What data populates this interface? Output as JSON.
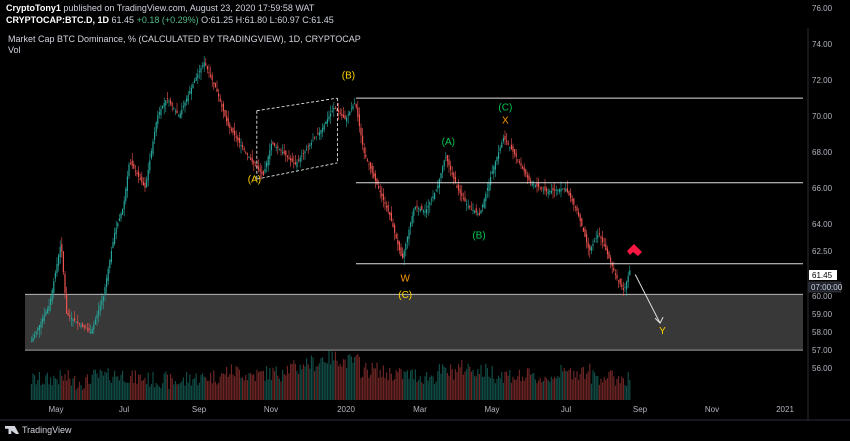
{
  "header": {
    "publisher": "CryptoTony1",
    "published_text": "published on TradingView.com, August 23, 2020 17:59:58 WAT",
    "symbol": "CRYPTOCAP:BTC.D, 1D",
    "last": "61.45",
    "change": "+0.18 (+0.29%)",
    "ohlc": "O:61.25 H:61.80 L:60.97 C:61.45"
  },
  "chart_data": {
    "type": "candlestick",
    "title": "Market Cap BTC Dominance, % (CALCULATED BY TRADINGVIEW), 1D, CRYPTOCAP",
    "indicator": "Vol",
    "x_ticks": [
      "May",
      "Jul",
      "Sep",
      "Nov",
      "2020",
      "Mar",
      "May",
      "Jul",
      "Sep",
      "Nov",
      "2021"
    ],
    "y_ticks": [
      "56.00",
      "57.00",
      "58.00",
      "59.00",
      "60.00",
      "62.50",
      "64.00",
      "66.00",
      "68.00",
      "70.00",
      "72.00",
      "74.00",
      "76.00"
    ],
    "ylim": [
      55.0,
      76.0
    ],
    "last_price": "61.45",
    "countdown": "07:00:00",
    "horizontal_levels": [
      71.0,
      66.3,
      61.8
    ],
    "support_zone": [
      57.0,
      60.1
    ],
    "trend": [
      {
        "date": "2019-04-10",
        "value": 57.5
      },
      {
        "date": "2019-04-25",
        "value": 59.5
      },
      {
        "date": "2019-05-05",
        "value": 63.0
      },
      {
        "date": "2019-05-10",
        "value": 59.0
      },
      {
        "date": "2019-05-20",
        "value": 58.5
      },
      {
        "date": "2019-06-01",
        "value": 58.0
      },
      {
        "date": "2019-06-12",
        "value": 60.0
      },
      {
        "date": "2019-06-22",
        "value": 63.5
      },
      {
        "date": "2019-06-30",
        "value": 65.0
      },
      {
        "date": "2019-07-05",
        "value": 67.5
      },
      {
        "date": "2019-07-18",
        "value": 66.0
      },
      {
        "date": "2019-07-28",
        "value": 70.0
      },
      {
        "date": "2019-08-05",
        "value": 71.0
      },
      {
        "date": "2019-08-15",
        "value": 70.0
      },
      {
        "date": "2019-08-28",
        "value": 72.0
      },
      {
        "date": "2019-09-05",
        "value": 73.0
      },
      {
        "date": "2019-09-15",
        "value": 71.5
      },
      {
        "date": "2019-09-25",
        "value": 69.5
      },
      {
        "date": "2019-10-05",
        "value": 68.5
      },
      {
        "date": "2019-10-15",
        "value": 67.5
      },
      {
        "date": "2019-10-25",
        "value": 66.7
      },
      {
        "date": "2019-11-01",
        "value": 68.5
      },
      {
        "date": "2019-11-10",
        "value": 68.0
      },
      {
        "date": "2019-11-20",
        "value": 67.3
      },
      {
        "date": "2019-12-01",
        "value": 68.3
      },
      {
        "date": "2019-12-12",
        "value": 69.3
      },
      {
        "date": "2019-12-22",
        "value": 70.5
      },
      {
        "date": "2019-12-31",
        "value": 69.8
      },
      {
        "date": "2020-01-08",
        "value": 70.8
      },
      {
        "date": "2020-01-15",
        "value": 68.0
      },
      {
        "date": "2020-01-25",
        "value": 66.3
      },
      {
        "date": "2020-02-05",
        "value": 64.5
      },
      {
        "date": "2020-02-15",
        "value": 62.0
      },
      {
        "date": "2020-02-25",
        "value": 65.0
      },
      {
        "date": "2020-03-05",
        "value": 64.7
      },
      {
        "date": "2020-03-15",
        "value": 66.0
      },
      {
        "date": "2020-03-22",
        "value": 67.8
      },
      {
        "date": "2020-04-01",
        "value": 66.0
      },
      {
        "date": "2020-04-10",
        "value": 65.0
      },
      {
        "date": "2020-04-20",
        "value": 64.5
      },
      {
        "date": "2020-05-01",
        "value": 67.0
      },
      {
        "date": "2020-05-10",
        "value": 68.8
      },
      {
        "date": "2020-05-20",
        "value": 67.8
      },
      {
        "date": "2020-06-01",
        "value": 66.3
      },
      {
        "date": "2020-06-15",
        "value": 65.8
      },
      {
        "date": "2020-06-30",
        "value": 66.0
      },
      {
        "date": "2020-07-10",
        "value": 64.7
      },
      {
        "date": "2020-07-20",
        "value": 62.5
      },
      {
        "date": "2020-07-28",
        "value": 63.5
      },
      {
        "date": "2020-08-05",
        "value": 62.2
      },
      {
        "date": "2020-08-12",
        "value": 61.0
      },
      {
        "date": "2020-08-18",
        "value": 60.3
      },
      {
        "date": "2020-08-23",
        "value": 61.45
      }
    ],
    "projection": [
      {
        "date": "2020-08-28",
        "value": 61.2
      },
      {
        "date": "2020-09-18",
        "value": 58.5
      }
    ],
    "wave_labels": [
      {
        "text": "(A)",
        "date": "2019-10-18",
        "value": 66.3,
        "color": "#ffd400"
      },
      {
        "text": "(B)",
        "date": "2020-01-03",
        "value": 72.1,
        "color": "#ffd400"
      },
      {
        "text": "W",
        "date": "2020-02-18",
        "value": 60.8,
        "color": "#ff9800"
      },
      {
        "text": "(C)",
        "date": "2020-02-18",
        "value": 59.9,
        "color": "#ffd400"
      },
      {
        "text": "(A)",
        "date": "2020-03-25",
        "value": 68.4,
        "color": "#00c853"
      },
      {
        "text": "(B)",
        "date": "2020-04-20",
        "value": 63.2,
        "color": "#00c853"
      },
      {
        "text": "(C)",
        "date": "2020-05-12",
        "value": 70.3,
        "color": "#00c853"
      },
      {
        "text": "X",
        "date": "2020-05-12",
        "value": 69.6,
        "color": "#ff9800"
      },
      {
        "text": "Y",
        "date": "2020-09-20",
        "value": 57.9,
        "color": "#ffd400"
      }
    ],
    "channel": {
      "upper": [
        {
          "date": "2019-10-20",
          "value": 70.3
        },
        {
          "date": "2019-12-25",
          "value": 71.0
        }
      ],
      "lower": [
        {
          "date": "2019-10-20",
          "value": 66.5
        },
        {
          "date": "2019-12-25",
          "value": 67.4
        }
      ]
    },
    "volume_relative": [
      0.35,
      0.4,
      0.3,
      0.45,
      0.5,
      0.4,
      0.35,
      0.3,
      0.4,
      0.45,
      0.6,
      0.5,
      0.55,
      0.7,
      0.85,
      1.0,
      0.9,
      0.65,
      0.55,
      0.5,
      0.45,
      0.6,
      0.7,
      0.6,
      0.5,
      0.45,
      0.4,
      0.55,
      0.6,
      0.45,
      0.4
    ]
  }
}
